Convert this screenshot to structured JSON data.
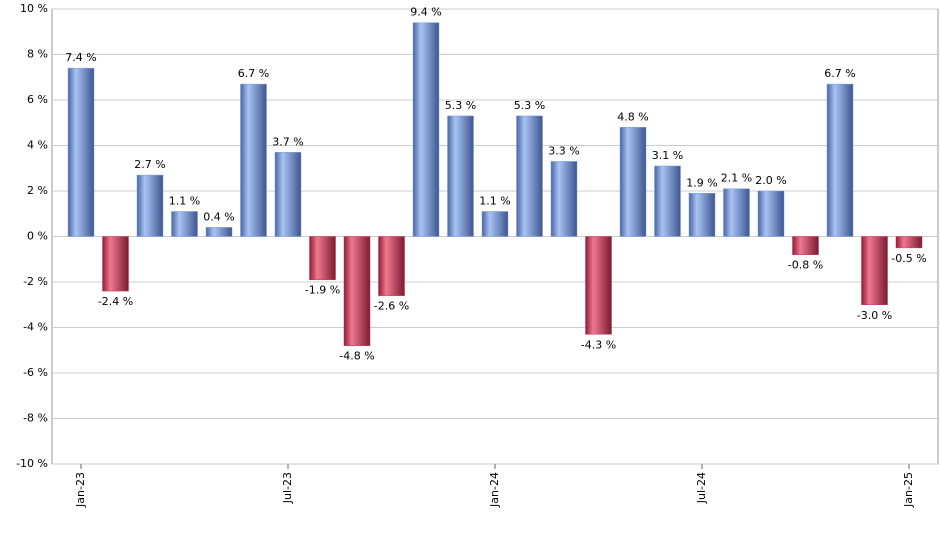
{
  "chart_data": {
    "type": "bar",
    "categories": [
      "Jan-23",
      null,
      null,
      null,
      null,
      null,
      "Jul-23",
      null,
      null,
      null,
      null,
      null,
      "Jan-24",
      null,
      null,
      null,
      null,
      null,
      "Jul-24",
      null,
      null,
      null,
      null,
      null,
      "Jan-25"
    ],
    "values": [
      7.4,
      -2.4,
      2.7,
      1.1,
      0.4,
      6.7,
      3.7,
      -1.9,
      -4.8,
      -2.6,
      9.4,
      5.3,
      1.1,
      5.3,
      3.3,
      -4.3,
      4.8,
      3.1,
      1.9,
      2.1,
      2.0,
      -0.8,
      6.7,
      -3.0,
      -0.5
    ],
    "value_labels": [
      "7.4 %",
      "-2.4 %",
      "2.7 %",
      "1.1 %",
      "0.4 %",
      "6.7 %",
      "3.7 %",
      "-1.9 %",
      "-4.8 %",
      "-2.6 %",
      "9.4 %",
      "5.3 %",
      "1.1 %",
      "5.3 %",
      "3.3 %",
      "-4.3 %",
      "4.8 %",
      "3.1 %",
      "1.9 %",
      "2.1 %",
      "2.0 %",
      "-0.8 %",
      "6.7 %",
      "-3.0 %",
      "-0.5 %"
    ],
    "positive_color": "#7c9ee0",
    "negative_color": "#c8385a",
    "ylim": [
      -10,
      10
    ],
    "yticks": [
      {
        "value": -10,
        "label": "-10 %"
      },
      {
        "value": -8,
        "label": "-8 %"
      },
      {
        "value": -6,
        "label": "-6 %"
      },
      {
        "value": -4,
        "label": "-4 %"
      },
      {
        "value": -2,
        "label": "-2 %"
      },
      {
        "value": 0,
        "label": "0 %"
      },
      {
        "value": 2,
        "label": "2 %"
      },
      {
        "value": 4,
        "label": "4 %"
      },
      {
        "value": 6,
        "label": "6 %"
      },
      {
        "value": 8,
        "label": "8 %"
      },
      {
        "value": 10,
        "label": "10 %"
      }
    ],
    "grid": true
  }
}
